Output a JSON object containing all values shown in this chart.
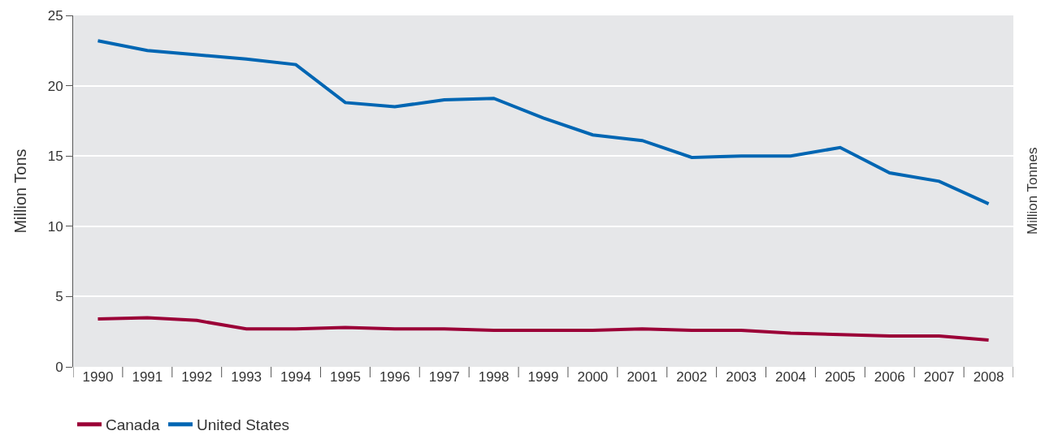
{
  "chart_data": {
    "type": "line",
    "ylabel": "Million Tons",
    "y2label": "Million Tonnes",
    "categories": [
      "1990",
      "1991",
      "1992",
      "1993",
      "1994",
      "1995",
      "1996",
      "1997",
      "1998",
      "1999",
      "2000",
      "2001",
      "2002",
      "2003",
      "2004",
      "2005",
      "2006",
      "2007",
      "2008"
    ],
    "series": [
      {
        "name": "Canada",
        "color": "#9b0037",
        "values": [
          3.4,
          3.5,
          3.3,
          2.7,
          2.7,
          2.8,
          2.7,
          2.7,
          2.6,
          2.6,
          2.6,
          2.7,
          2.6,
          2.6,
          2.4,
          2.3,
          2.2,
          2.2,
          1.9
        ]
      },
      {
        "name": "United States",
        "color": "#0066b3",
        "values": [
          23.2,
          22.5,
          22.2,
          21.9,
          21.5,
          18.8,
          18.5,
          19.0,
          19.1,
          17.7,
          16.5,
          16.1,
          14.9,
          15.0,
          15.0,
          15.6,
          13.8,
          13.2,
          11.6
        ]
      }
    ],
    "ylim": [
      0,
      25
    ],
    "yticks": [
      0,
      5,
      10,
      15,
      20,
      25
    ],
    "grid": "y",
    "legend": "bottom left",
    "marker": "none",
    "line_style": "solid"
  }
}
